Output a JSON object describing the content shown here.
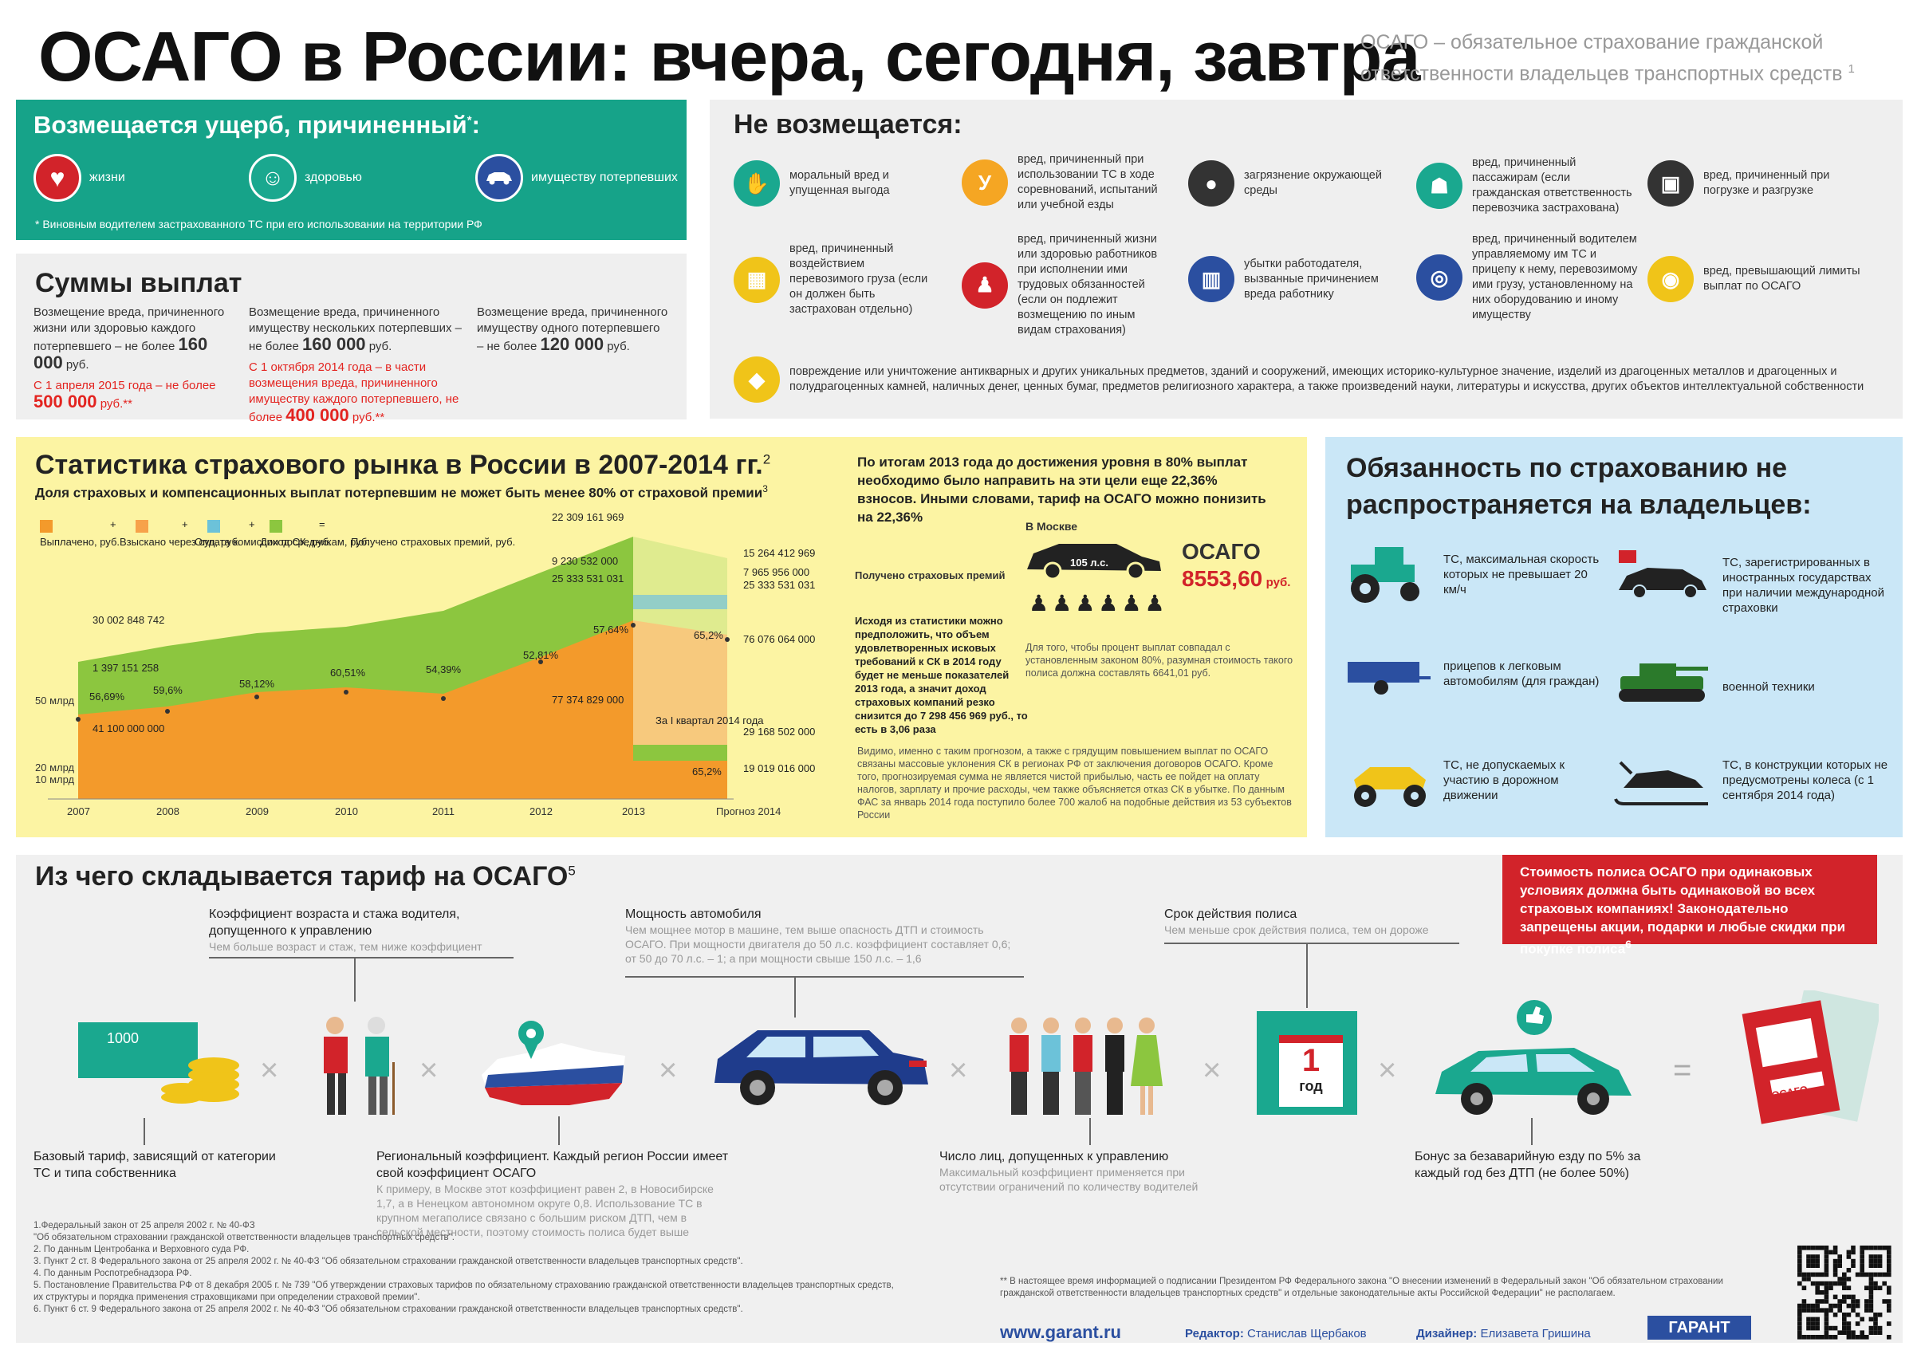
{
  "title": "ОСАГО в России: вчера, сегодня, завтра",
  "subtitle": "ОСАГО – обязательное страхование гражданской ответственности владельцев транспортных средств",
  "subtitle_sup": "1",
  "compensated": {
    "title": "Возмещается ущерб, причиненный",
    "title_sup": "*",
    "items": [
      "жизни",
      "здоровью",
      "имуществу потерпевших"
    ],
    "note": "* Виновным водителем застрахованного ТС при его использовании на территории РФ"
  },
  "not_compensated": {
    "title": "Не возмещается:",
    "items": [
      "моральный вред и упущенная выгода",
      "вред, причиненный при использовании ТС в ходе соревнований, испытаний или учебной езды",
      "загрязнение окружающей среды",
      "вред, причиненный пассажирам (если гражданская ответственность перевозчика застрахована)",
      "вред, причиненный при погрузке и разгрузке",
      "вред, причиненный воздействием перевозимого груза (если он должен быть застрахован отдельно)",
      "вред, причиненный жизни или здоровью работников при исполнении ими трудовых обязанностей (если он подлежит возмещению по иным видам страхования)",
      "убытки работодателя, вызванные причинением вреда работнику",
      "вред, причиненный водителем управляемому им ТС и прицепу к нему, перевозимому ими грузу, установленному на них оборудованию и иному имуществу",
      "вред, превышающий лимиты выплат по ОСАГО",
      "повреждение или уничтожение антикварных и других уникальных предметов, зданий и сооружений, имеющих историко-культурное значение, изделий из драгоценных металлов и драгоценных и полудрагоценных камней, наличных денег, ценных бумаг, предметов религиозного характера, а также произведений науки, литературы и искусства, других объектов интеллектуальной собственности"
    ],
    "icon_colors": [
      "#1aa88f",
      "#f5a623",
      "#333333",
      "#1aa88f",
      "#333333",
      "#f0c419",
      "#d2232a",
      "#2b4fa0",
      "#2b4fa0",
      "#f0c419",
      "#f0c419"
    ]
  },
  "sums": {
    "title": "Суммы выплат",
    "col1": {
      "text": "Возмещение вреда, причиненного жизни или здоровью каждого потерпевшего – не более",
      "amount": "160 000",
      "unit": "руб.",
      "red_text": "С 1 апреля 2015 года – не более",
      "red_amount": "500 000",
      "red_unit": "руб.**"
    },
    "col2": {
      "text": "Возмещение вреда, причиненного имуществу нескольких потерпевших – не более",
      "amount": "160 000",
      "unit": "руб.",
      "red_text": "С 1 октября 2014 года – в части возмещения вреда, причиненного имуществу каждого потерпевшего, не более",
      "red_amount": "400 000",
      "red_unit": "руб.**"
    },
    "col3": {
      "text": "Возмещение вреда, причиненного имуществу одного потерпевшего – не более",
      "amount": "120 000",
      "unit": "руб."
    }
  },
  "stats": {
    "title": "Статистика страхового рынка в России в 2007-2014 гг.",
    "title_sup": "2",
    "subtitle": "Доля страховых и компенсационных выплат потерпевшим не может быть менее 80% от страховой премии",
    "subtitle_sup": "3",
    "forecast_note": "По итогам 2013 года до достижения уровня в 80% выплат необходимо было направить на эти цели еще 22,36% взносов. Иными словами, тариф на ОСАГО можно понизить на 22,36%",
    "moscow_label": "В Москве",
    "moscow_hp": "105 л.с.",
    "osago_label": "ОСАГО",
    "osago_price": "8553,60",
    "osago_unit": "руб.",
    "moscow_note": "Для того, чтобы процент выплат совпадал с установленным законом 80%, разумная стоимость такого полиса должна составлять 6641,01 руб.",
    "received_label": "Получено страховых премий",
    "analysis": "Исходя из статистики можно предположить, что объем удовлетворенных исковых требований к СК в 2014 году будет не меньше показателей 2013 года, а значит доход страховых компаний резко снизится до 7 298 456 969 руб., то есть в 3,06 раза",
    "footnote": "Видимо, именно с таким прогнозом, а также с грядущим повышением выплат по ОСАГО связаны массовые уклонения СК в регионах РФ от заключения договоров ОСАГО. Кроме того, прогнозируемая сумма не является чистой прибылью, часть ее пойдет на оплату налогов, зарплату и прочие расходы, чем также объясняется отказ СК в убытке. По данным ФАС за январь 2014 года поступило более 700 жалоб на подобные действия из 53 субъектов России"
  },
  "chart_data": {
    "type": "area",
    "title": "Статистика страхового рынка в России в 2007-2014 гг.",
    "x": [
      "2007",
      "2008",
      "2009",
      "2010",
      "2011",
      "2012",
      "2013",
      "Прогноз 2014"
    ],
    "ytick_labels": [
      "10 млрд",
      "20 млрд",
      "50 млрд"
    ],
    "legend": [
      "Выплачено, руб.",
      "Взыскано через суд, руб.",
      "Оплата комиссии посредникам, руб.",
      "Доход СК, руб.",
      "Получено страховых премий, руб."
    ],
    "series": [
      {
        "name": "Выплачено, руб.",
        "color": "#f39a2b"
      },
      {
        "name": "Доход СК, руб.",
        "color": "#8cc63f"
      }
    ],
    "payout_percent": [
      "56,69%",
      "59,6%",
      "58,12%",
      "60,51%",
      "54,39%",
      "52,81%",
      "57,64%",
      "65,2%"
    ],
    "data_labels": [
      "30 002 848 742",
      "1 397 151 258",
      "41 100 000 000",
      "22 309 161 969",
      "9 230 532 000",
      "25 333 531 031",
      "77 374 829 000",
      "15 264 412 969",
      "7 965 956 000",
      "25 333 531 031",
      "76 076 064 000",
      "29 168 502 000",
      "19 019 016 000",
      "65,2%",
      "За I квартал 2014 года"
    ],
    "legend_ops": [
      "+",
      "+",
      "+",
      "="
    ]
  },
  "exceptions": {
    "title": "Обязанность по страхованию не распространяется на владельцев:",
    "items": [
      "ТС, максимальная скорость которых не превышает 20 км/ч",
      "ТС, зарегистрированных в иностранных государствах при наличии международной страховки",
      "прицепов к легковым автомобилям (для граждан)",
      "военной техники",
      "ТС, не допускаемых к участию в дорожном движении",
      "ТС, в конструкции которых не предусмотрены колеса (с 1 сентября 2014 года)"
    ]
  },
  "tariff": {
    "title": "Из чего складывается тариф на ОСАГО",
    "title_sup": "5",
    "red_box": "Стоимость полиса ОСАГО при одинаковых условиях должна быть одинаковой во всех страховых компаниях! Законодательно запрещены акции, подарки и любые скидки при покупке полиса",
    "red_box_sup": "6",
    "base": "Базовый тариф, зависящий от категории ТС и типа собственника",
    "age_title": "Коэффициент возраста и стажа водителя, допущенного к управлению",
    "age_note": "Чем больше возраст и стаж, тем ниже коэффициент",
    "region_title": "Региональный коэффициент. Каждый регион России имеет свой коэффициент ОСАГО",
    "region_note": "К примеру, в Москве этот коэффициент равен 2, в Новосибирске 1,7, а в Ненецком автономном округе 0,8. Использование ТС в крупном мегаполисе связано с большим риском ДТП, чем в сельской местности, поэтому стоимость полиса будет выше",
    "power_title": "Мощность автомобиля",
    "power_note": "Чем мощнее мотор в машине, тем выше опасность ДТП и стоимость ОСАГО. При мощности двигателя до 50 л.с. коэффициент составляет 0,6; от 50 до 70 л.с. – 1; а при мощности свыше 150 л.с. – 1,6",
    "drivers_title": "Число лиц, допущенных к управлению",
    "drivers_note": "Максимальный коэффициент применяется при отсутствии ограничений по количеству водителей",
    "term_title": "Срок действия полиса",
    "term_note": "Чем меньше срок действия полиса, тем он дороже",
    "bonus": "Бонус за безаварийную езду по 5% за каждый год без ДТП (не более 50%)",
    "banknote": "1000",
    "calendar_num": "1",
    "calendar_word": "год",
    "policy_label": "ОСАГО"
  },
  "footnotes": [
    "1.Федеральный закон от 25 апреля 2002 г. № 40-ФЗ",
    "\"Об обязательном страховании гражданской ответственности владельцев транспортных средств\".",
    "2. По данным Центробанка и Верховного суда РФ.",
    "3. Пункт 2 ст. 8 Федерального закона от 25 апреля 2002 г. № 40-ФЗ \"Об обязательном страховании гражданской ответственности владельцев транспортных средств\".",
    "4. По данным Роспотребнадзора РФ.",
    "5. Постановление Правительства РФ от 8 декабря 2005 г. № 739 \"Об утверждении страховых тарифов по обязательному страхованию гражданской ответственности владельцев транспортных средств, их структуры и порядка применения страховщиками при определении страховой премии\".",
    "6. Пункт 6 ст. 9 Федерального закона от 25 апреля 2002 г. № 40-ФЗ \"Об обязательном страховании гражданской ответственности владельцев транспортных средств\"."
  ],
  "footnote_star": "** В настоящее время информацией о подписании Президентом РФ Федерального закона \"О внесении изменений в Федеральный закон \"Об обязательном страховании гражданской ответственности владельцев транспортных средств\" и отдельные законодательные акты Российской Федерации\" не располагаем.",
  "footer": {
    "url": "www.garant.ru",
    "editor_label": "Редактор:",
    "editor": "Станислав Щербаков",
    "designer_label": "Дизайнер:",
    "designer": "Елизавета Гришина",
    "logo": "ГАРАНТ"
  }
}
